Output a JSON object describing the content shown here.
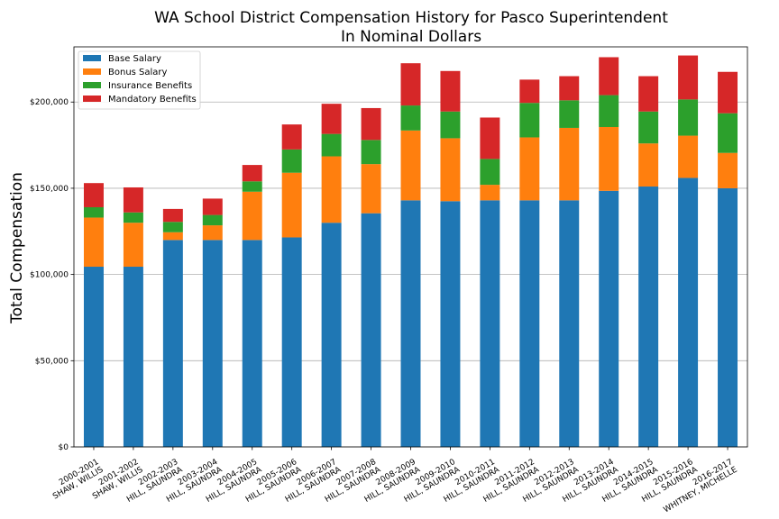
{
  "chart_data": {
    "type": "bar",
    "stacked": true,
    "title": "WA School District Compensation History for Pasco Superintendent",
    "subtitle": "In Nominal Dollars",
    "xlabel": "",
    "ylabel": "Total Compensation",
    "ylim": [
      0,
      232000
    ],
    "yticks": [
      0,
      50000,
      100000,
      150000,
      200000
    ],
    "ytick_labels": [
      "$0",
      "$50,000",
      "$100,000",
      "$150,000",
      "$200,000"
    ],
    "grid": "horizontal",
    "legend_position": "top-left",
    "categories": [
      [
        "2000-2001",
        "SHAW, WILLIS"
      ],
      [
        "2001-2002",
        "SHAW, WILLIS"
      ],
      [
        "2002-2003",
        "HILL, SAUNDRA"
      ],
      [
        "2003-2004",
        "HILL, SAUNDRA"
      ],
      [
        "2004-2005",
        "HILL, SAUNDRA"
      ],
      [
        "2005-2006",
        "HILL, SAUNDRA"
      ],
      [
        "2006-2007",
        "HILL, SAUNDRA"
      ],
      [
        "2007-2008",
        "HILL, SAUNDRA"
      ],
      [
        "2008-2009",
        "HILL, SAUNDRA"
      ],
      [
        "2009-2010",
        "HILL, SAUNDRA"
      ],
      [
        "2010-2011",
        "HILL, SAUNDRA"
      ],
      [
        "2011-2012",
        "HILL, SAUNDRA"
      ],
      [
        "2012-2013",
        "HILL, SAUNDRA"
      ],
      [
        "2013-2014",
        "HILL, SAUNDRA"
      ],
      [
        "2014-2015",
        "HILL, SAUNDRA"
      ],
      [
        "2015-2016",
        "HILL, SAUNDRA"
      ],
      [
        "2016-2017",
        "WHITNEY, MICHELLE"
      ]
    ],
    "series": [
      {
        "name": "Base Salary",
        "color": "#1f77b4",
        "values": [
          104500,
          104500,
          120000,
          120000,
          120000,
          121500,
          130000,
          135500,
          143000,
          142500,
          143000,
          143000,
          143000,
          148500,
          151000,
          156000,
          150000
        ]
      },
      {
        "name": "Bonus Salary",
        "color": "#ff7f0e",
        "values": [
          28500,
          25500,
          4500,
          8500,
          28000,
          37500,
          38500,
          28500,
          40500,
          36500,
          9000,
          36500,
          42000,
          37000,
          25000,
          24500,
          20500
        ]
      },
      {
        "name": "Insurance Benefits",
        "color": "#2ca02c",
        "values": [
          6000,
          6000,
          6000,
          6000,
          6000,
          13500,
          13000,
          14000,
          14500,
          15500,
          15000,
          20000,
          16000,
          18500,
          18500,
          21000,
          23000
        ]
      },
      {
        "name": "Mandatory Benefits",
        "color": "#d62728",
        "values": [
          14000,
          14500,
          7500,
          9500,
          9500,
          14500,
          17500,
          18500,
          24500,
          23500,
          24000,
          13500,
          14000,
          22000,
          20500,
          25500,
          24000
        ]
      }
    ]
  }
}
